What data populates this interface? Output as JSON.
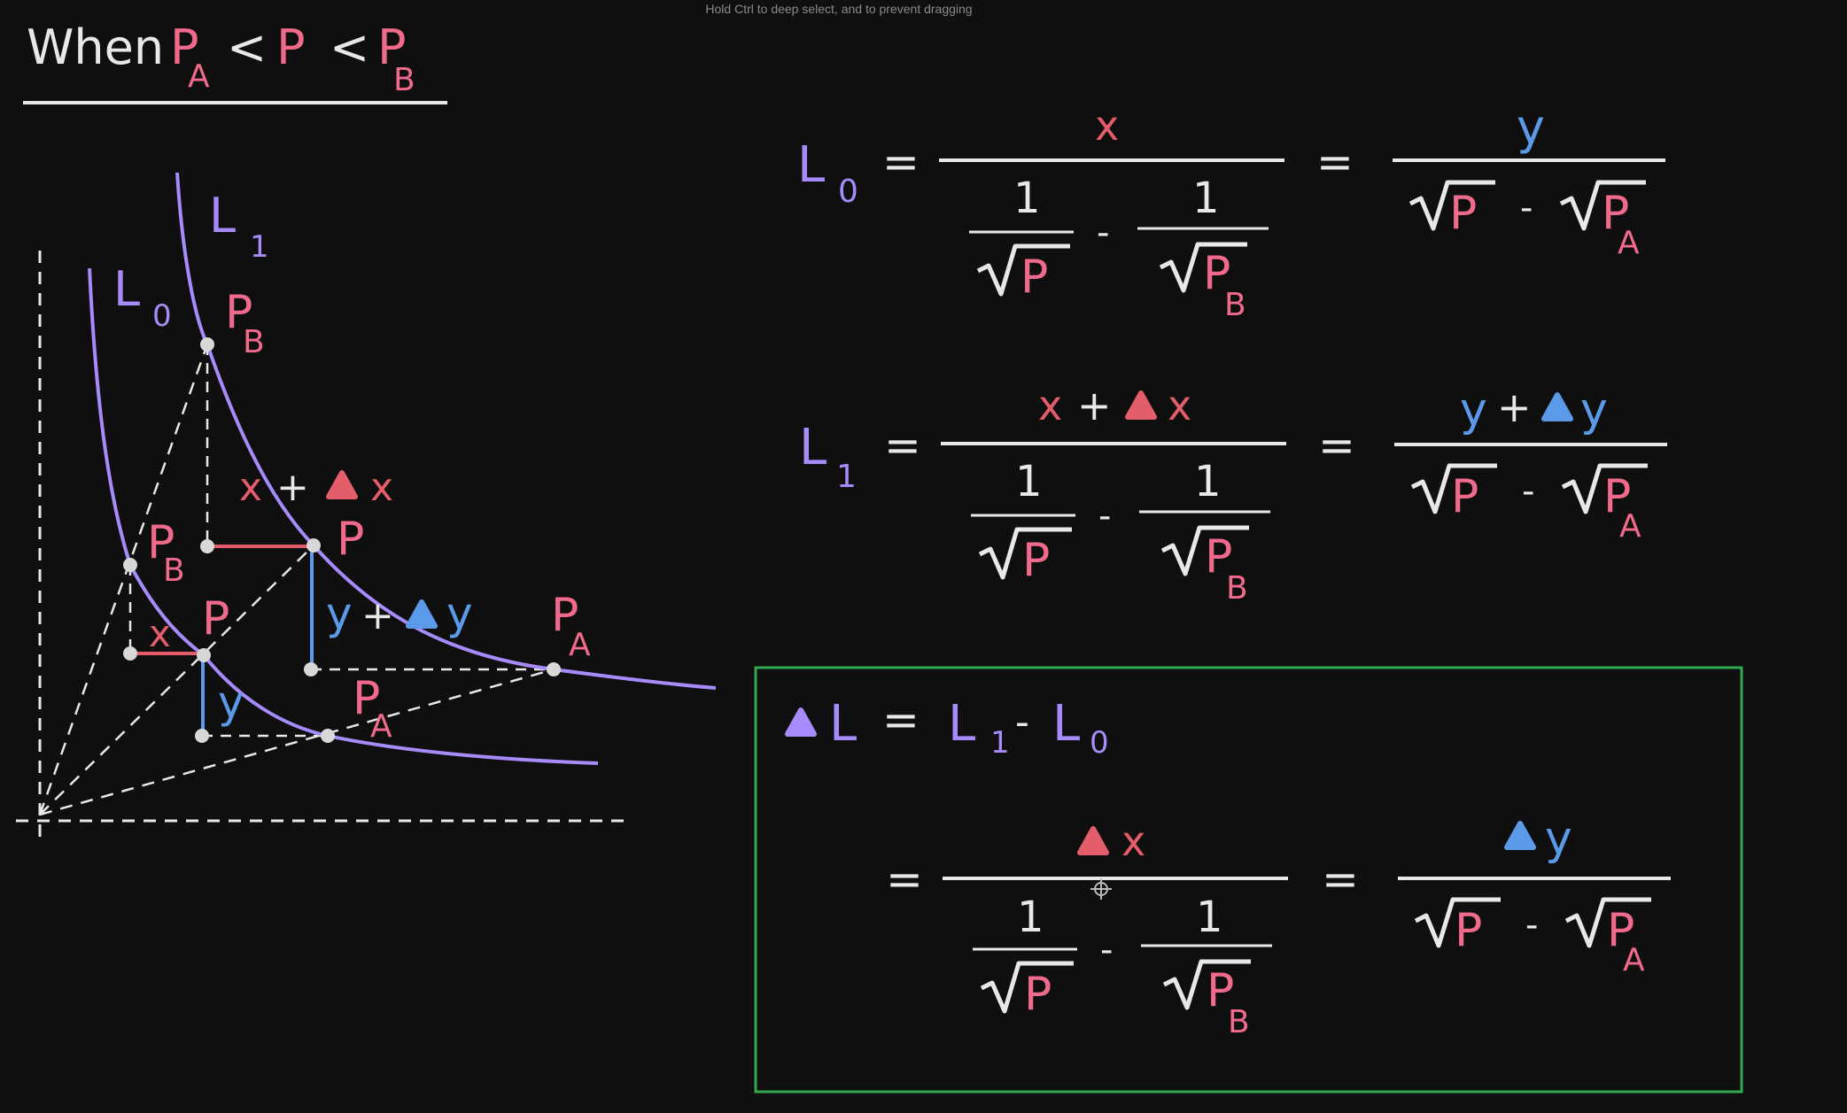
{
  "app": {
    "hint": "Hold Ctrl to deep select, and to prevent dragging"
  },
  "colors": {
    "background": "#0f0f0f",
    "white": "#e8e8e8",
    "pink": "#f06a8c",
    "red": "#e35d6a",
    "purple": "#a78bfa",
    "blue": "#5b9ae8",
    "gray": "#cfcfcf",
    "green_frame": "#2fa84f"
  },
  "title": {
    "when": "When",
    "pa_letter": "P",
    "pa_sub": "A",
    "lt1": "<",
    "p": "P",
    "lt2": "<",
    "pb_letter": "P",
    "pb_sub": "B"
  },
  "graph": {
    "curve_l0": {
      "letter": "L",
      "sub": "0"
    },
    "curve_l1": {
      "letter": "L",
      "sub": "1"
    },
    "pb_top": {
      "letter": "P",
      "sub": "B"
    },
    "pb_left": {
      "letter": "P",
      "sub": "B"
    },
    "p_upper": "P",
    "p_lower": "P",
    "pa_right": {
      "letter": "P",
      "sub": "A"
    },
    "pa_lower": {
      "letter": "P",
      "sub": "A"
    },
    "x_plus_dx": {
      "x": "x",
      "plus": "+",
      "dx": "x"
    },
    "y_plus_dy": {
      "y": "y",
      "plus": "+",
      "dy": "y"
    },
    "x_small": "x",
    "y_small": "y"
  },
  "eq_l0": {
    "lhs_letter": "L",
    "lhs_sub": "0",
    "eq1": "=",
    "num1": "x",
    "one_a": "1",
    "one_b": "1",
    "minus": "-",
    "root_p": "P",
    "root_pb": "P",
    "root_pb_sub": "B",
    "eq2": "=",
    "num2": "y",
    "root2_p": "P",
    "minus2": "-",
    "root2_pa": "P",
    "root2_pa_sub": "A"
  },
  "eq_l1": {
    "lhs_letter": "L",
    "lhs_sub": "1",
    "eq1": "=",
    "num1_x": "x",
    "num1_plus": "+",
    "num1_dx": "x",
    "one_a": "1",
    "one_b": "1",
    "minus": "-",
    "root_p": "P",
    "root_pb": "P",
    "root_pb_sub": "B",
    "eq2": "=",
    "num2_y": "y",
    "num2_plus": "+",
    "num2_dy": "y",
    "root2_p": "P",
    "minus2": "-",
    "root2_pa": "P",
    "root2_pa_sub": "A"
  },
  "eq_dl": {
    "lhs_letter": "L",
    "eq0": "=",
    "l1_letter": "L",
    "l1_sub": "1",
    "minus0": "-",
    "l0_letter": "L",
    "l0_sub": "0",
    "eq1": "=",
    "num1_dx": "x",
    "one_a": "1",
    "one_b": "1",
    "minus": "-",
    "root_p": "P",
    "root_pb": "P",
    "root_pb_sub": "B",
    "eq2": "=",
    "num2_dy": "y",
    "root2_p": "P",
    "minus2": "-",
    "root2_pa": "P",
    "root2_pa_sub": "A"
  }
}
